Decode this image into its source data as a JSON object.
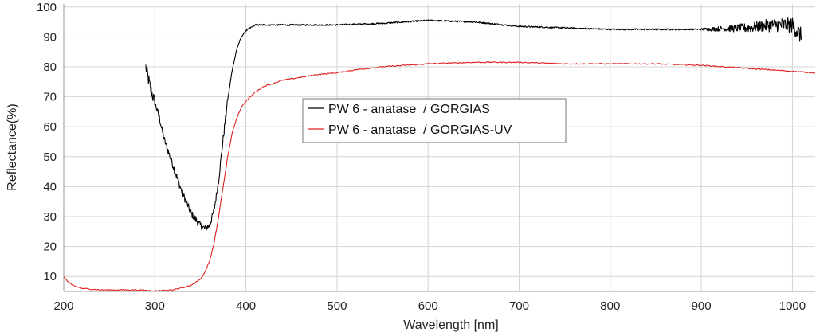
{
  "chart_data": {
    "type": "line",
    "title": "",
    "xlabel": "Wavelength [nm]",
    "ylabel": "Reflectance(%)",
    "xlim": [
      200,
      1025
    ],
    "ylim": [
      5,
      101
    ],
    "x_ticks": [
      200,
      300,
      400,
      500,
      600,
      700,
      800,
      900,
      1000
    ],
    "y_ticks": [
      10,
      20,
      30,
      40,
      50,
      60,
      70,
      80,
      90,
      100
    ],
    "grid": true,
    "legend_position": "center",
    "series": [
      {
        "name": "PW 6 - anatase  / GORGIAS",
        "color": "#000000",
        "noisy": true,
        "x": [
          290,
          295,
          300,
          305,
          310,
          320,
          330,
          340,
          350,
          355,
          360,
          365,
          370,
          375,
          380,
          385,
          390,
          395,
          400,
          405,
          410,
          420,
          450,
          500,
          550,
          600,
          650,
          700,
          750,
          800,
          850,
          900,
          950,
          980,
          1000,
          1010
        ],
        "y": [
          80,
          73,
          68,
          63,
          56,
          47,
          38,
          31,
          27,
          26,
          27,
          32,
          42,
          56,
          69,
          79,
          86,
          90,
          92,
          93,
          94,
          94,
          94,
          94,
          94.5,
          95.5,
          95,
          93.5,
          93,
          92.5,
          92.5,
          92.5,
          93,
          94,
          94,
          90
        ]
      },
      {
        "name": "PW 6 - anatase  / GORGIAS-UV",
        "color": "#e02020",
        "noisy": false,
        "x": [
          200,
          205,
          210,
          220,
          240,
          260,
          280,
          300,
          320,
          340,
          350,
          355,
          360,
          365,
          370,
          375,
          380,
          385,
          390,
          395,
          400,
          410,
          420,
          440,
          460,
          480,
          500,
          520,
          550,
          600,
          650,
          700,
          750,
          800,
          850,
          900,
          950,
          1000,
          1025
        ],
        "y": [
          10,
          8,
          7,
          6,
          5.5,
          5.5,
          5.5,
          5.2,
          5.5,
          7,
          9,
          11.5,
          15,
          21,
          30,
          40,
          50,
          58,
          63,
          66.5,
          68.5,
          71.5,
          73.5,
          75.5,
          76.5,
          77.5,
          78,
          79,
          80,
          81,
          81.5,
          81.5,
          81,
          81,
          81,
          80.5,
          79.5,
          78.5,
          78
        ]
      }
    ]
  }
}
